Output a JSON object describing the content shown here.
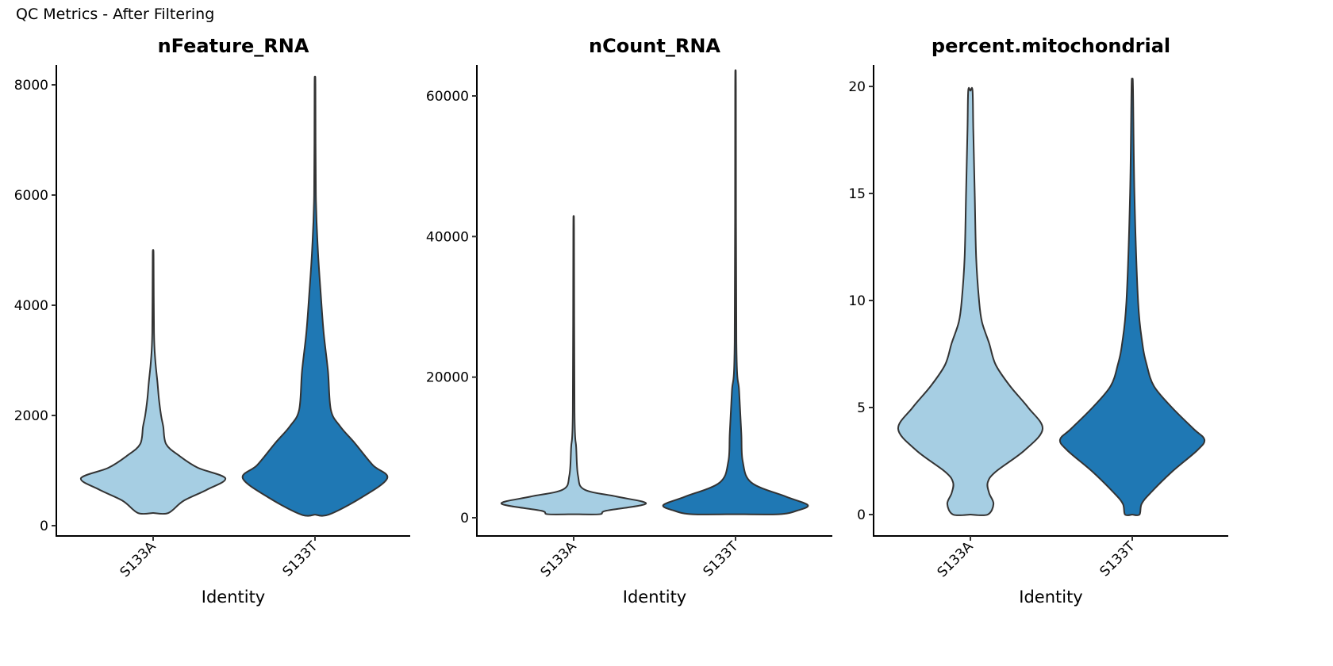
{
  "title": "QC Metrics - After Filtering",
  "colors": {
    "S133A": "#a6cee3",
    "S133T": "#1f78b4",
    "outline": "#333333"
  },
  "chart_data": [
    {
      "type": "violin",
      "title": "nFeature_RNA",
      "xlabel": "Identity",
      "ylabel": "",
      "categories": [
        "S133A",
        "S133T"
      ],
      "ylim": [
        0,
        8000
      ],
      "yticks": [
        0,
        2000,
        4000,
        6000,
        8000
      ],
      "ytick_labels": [
        "0",
        "2000",
        "4000",
        "6000",
        "8000"
      ],
      "series": [
        {
          "name": "S133A",
          "density": [
            [
              230,
              0.21
            ],
            [
              450,
              0.42
            ],
            [
              650,
              0.74
            ],
            [
              860,
              1.0
            ],
            [
              1050,
              0.62
            ],
            [
              1270,
              0.36
            ],
            [
              1480,
              0.18
            ],
            [
              1800,
              0.14
            ],
            [
              2000,
              0.11
            ],
            [
              2300,
              0.08
            ],
            [
              2600,
              0.06
            ],
            [
              3000,
              0.03
            ],
            [
              3500,
              0.012
            ],
            [
              4900,
              0.006
            ]
          ]
        },
        {
          "name": "S133T",
          "density": [
            [
              200,
              0.19
            ],
            [
              500,
              0.63
            ],
            [
              860,
              1.0
            ],
            [
              1100,
              0.8
            ],
            [
              1500,
              0.55
            ],
            [
              1800,
              0.35
            ],
            [
              2100,
              0.22
            ],
            [
              2800,
              0.18
            ],
            [
              3500,
              0.12
            ],
            [
              4200,
              0.08
            ],
            [
              5000,
              0.04
            ],
            [
              6000,
              0.012
            ],
            [
              8000,
              0.006
            ]
          ]
        }
      ]
    },
    {
      "type": "violin",
      "title": "nCount_RNA",
      "xlabel": "Identity",
      "ylabel": "",
      "categories": [
        "S133A",
        "S133T"
      ],
      "ylim": [
        0,
        60000
      ],
      "yticks": [
        0,
        20000,
        40000,
        60000
      ],
      "ytick_labels": [
        "0",
        "20000",
        "40000",
        "60000"
      ],
      "series": [
        {
          "name": "S133A",
          "density": [
            [
              500,
              0.36
            ],
            [
              1000,
              0.45
            ],
            [
              2000,
              1.0
            ],
            [
              3000,
              0.6
            ],
            [
              4000,
              0.15
            ],
            [
              6000,
              0.06
            ],
            [
              10000,
              0.035
            ],
            [
              15000,
              0.012
            ],
            [
              41000,
              0.005
            ]
          ]
        },
        {
          "name": "S133T",
          "density": [
            [
              500,
              0.6
            ],
            [
              1000,
              0.85
            ],
            [
              1800,
              1.0
            ],
            [
              3000,
              0.7
            ],
            [
              5000,
              0.22
            ],
            [
              8000,
              0.1
            ],
            [
              12000,
              0.08
            ],
            [
              18000,
              0.05
            ],
            [
              25000,
              0.012
            ],
            [
              61000,
              0.005
            ]
          ]
        }
      ]
    },
    {
      "type": "violin",
      "title": "percent.mitochondrial",
      "xlabel": "Identity",
      "ylabel": "",
      "categories": [
        "S133A",
        "S133T"
      ],
      "ylim": [
        0,
        20
      ],
      "yticks": [
        0,
        5,
        10,
        15,
        20
      ],
      "ytick_labels": [
        "0",
        "5",
        "10",
        "15",
        "20"
      ],
      "series": [
        {
          "name": "S133A",
          "density": [
            [
              0,
              0.24
            ],
            [
              0.5,
              0.32
            ],
            [
              1,
              0.26
            ],
            [
              1.5,
              0.24
            ],
            [
              2,
              0.35
            ],
            [
              3,
              0.75
            ],
            [
              4,
              1.0
            ],
            [
              5,
              0.8
            ],
            [
              6,
              0.55
            ],
            [
              7,
              0.35
            ],
            [
              8,
              0.26
            ],
            [
              9,
              0.16
            ],
            [
              10,
              0.12
            ],
            [
              12,
              0.08
            ],
            [
              15,
              0.06
            ],
            [
              18,
              0.04
            ],
            [
              19.8,
              0.03
            ]
          ]
        },
        {
          "name": "S133T",
          "density": [
            [
              0,
              0.1
            ],
            [
              0.5,
              0.13
            ],
            [
              1,
              0.25
            ],
            [
              2,
              0.55
            ],
            [
              3,
              0.9
            ],
            [
              3.5,
              1.0
            ],
            [
              4,
              0.85
            ],
            [
              5,
              0.55
            ],
            [
              6,
              0.3
            ],
            [
              7,
              0.2
            ],
            [
              8,
              0.14
            ],
            [
              10,
              0.08
            ],
            [
              15,
              0.03
            ],
            [
              20,
              0.01
            ]
          ]
        }
      ]
    }
  ]
}
